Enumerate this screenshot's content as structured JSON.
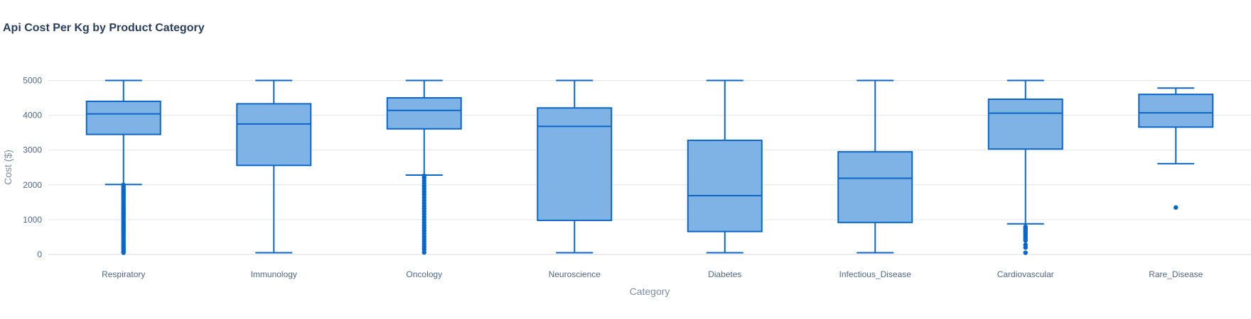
{
  "chart_data": {
    "type": "box",
    "title": "Api Cost Per Kg by Product Category",
    "xlabel": "Category",
    "ylabel": "Cost ($)",
    "ylim": [
      -500,
      5500
    ],
    "yticks": [
      0,
      1000,
      2000,
      3000,
      4000,
      5000
    ],
    "grid": true,
    "colors": {
      "box_fill": "#7fb2e5",
      "box_line": "#0b66c8",
      "grid": "#e6e6e6"
    },
    "categories": [
      "Respiratory",
      "Immunology",
      "Oncology",
      "Neuroscience",
      "Diabetes",
      "Infectious_Disease",
      "Cardiovascular",
      "Rare_Disease"
    ],
    "boxes": [
      {
        "category": "Respiratory",
        "lower_whisker": 2010,
        "q1": 3450,
        "median": 4040,
        "q3": 4400,
        "upper_whisker": 5000,
        "outliers": [
          50,
          100,
          150,
          200,
          250,
          300,
          350,
          400,
          450,
          500,
          550,
          600,
          650,
          700,
          750,
          800,
          850,
          900,
          950,
          1000,
          1050,
          1100,
          1150,
          1200,
          1250,
          1300,
          1350,
          1400,
          1450,
          1500,
          1550,
          1600,
          1650,
          1700,
          1750,
          1800,
          1850,
          1900,
          1950,
          2000
        ]
      },
      {
        "category": "Immunology",
        "lower_whisker": 50,
        "q1": 2560,
        "median": 3750,
        "q3": 4330,
        "upper_whisker": 5000,
        "outliers": []
      },
      {
        "category": "Oncology",
        "lower_whisker": 2280,
        "q1": 3610,
        "median": 4140,
        "q3": 4500,
        "upper_whisker": 5000,
        "outliers": [
          60,
          150,
          220,
          300,
          380,
          450,
          520,
          600,
          680,
          760,
          840,
          920,
          1000,
          1080,
          1160,
          1240,
          1320,
          1400,
          1480,
          1560,
          1640,
          1720,
          1800,
          1880,
          1960,
          2040,
          2120,
          2200,
          2260
        ]
      },
      {
        "category": "Neuroscience",
        "lower_whisker": 50,
        "q1": 980,
        "median": 3680,
        "q3": 4210,
        "upper_whisker": 5000,
        "outliers": []
      },
      {
        "category": "Diabetes",
        "lower_whisker": 50,
        "q1": 660,
        "median": 1690,
        "q3": 3280,
        "upper_whisker": 5000,
        "outliers": []
      },
      {
        "category": "Infectious_Disease",
        "lower_whisker": 50,
        "q1": 920,
        "median": 2190,
        "q3": 2950,
        "upper_whisker": 5000,
        "outliers": []
      },
      {
        "category": "Cardiovascular",
        "lower_whisker": 880,
        "q1": 3030,
        "median": 4060,
        "q3": 4460,
        "upper_whisker": 5000,
        "outliers": [
          50,
          200,
          280,
          400,
          450,
          500,
          550,
          600,
          650,
          700,
          750,
          800
        ]
      },
      {
        "category": "Rare_Disease",
        "lower_whisker": 2610,
        "q1": 3660,
        "median": 4070,
        "q3": 4600,
        "upper_whisker": 4780,
        "outliers": [
          1350
        ]
      }
    ]
  }
}
